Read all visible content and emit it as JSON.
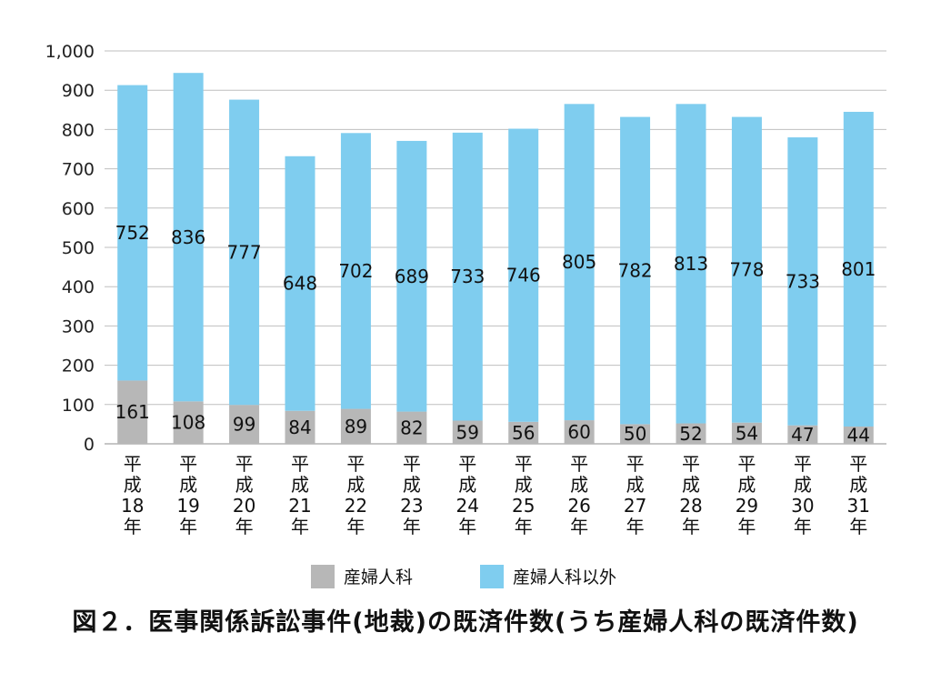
{
  "caption": "図２．医事関係訴訟事件(地裁)の既済件数(うち産婦人科の既済件数)",
  "colors": {
    "obgyn": "#b7b7b7",
    "other": "#7fcdef",
    "grid": "#bfbfbf",
    "axis": "#8c8c8c"
  },
  "chart_data": {
    "type": "bar",
    "stacked": true,
    "title": "図２．医事関係訴訟事件(地裁)の既済件数(うち産婦人科の既済件数)",
    "categories": [
      [
        "平",
        "成",
        "18",
        "年"
      ],
      [
        "平",
        "成",
        "19",
        "年"
      ],
      [
        "平",
        "成",
        "20",
        "年"
      ],
      [
        "平",
        "成",
        "21",
        "年"
      ],
      [
        "平",
        "成",
        "22",
        "年"
      ],
      [
        "平",
        "成",
        "23",
        "年"
      ],
      [
        "平",
        "成",
        "24",
        "年"
      ],
      [
        "平",
        "成",
        "25",
        "年"
      ],
      [
        "平",
        "成",
        "26",
        "年"
      ],
      [
        "平",
        "成",
        "27",
        "年"
      ],
      [
        "平",
        "成",
        "28",
        "年"
      ],
      [
        "平",
        "成",
        "29",
        "年"
      ],
      [
        "平",
        "成",
        "30",
        "年"
      ],
      [
        "平",
        "成",
        "31",
        "年"
      ]
    ],
    "series": [
      {
        "name": "産婦人科",
        "values": [
          161,
          108,
          99,
          84,
          89,
          82,
          59,
          56,
          60,
          50,
          52,
          54,
          47,
          44
        ]
      },
      {
        "name": "産婦人科以外",
        "values": [
          752,
          836,
          777,
          648,
          702,
          689,
          733,
          746,
          805,
          782,
          813,
          778,
          733,
          801
        ]
      }
    ],
    "ylim": [
      0,
      1000
    ],
    "yticks": [
      0,
      100,
      200,
      300,
      400,
      500,
      600,
      700,
      800,
      900,
      1000
    ],
    "ytick_labels": [
      "0",
      "100",
      "200",
      "300",
      "400",
      "500",
      "600",
      "700",
      "800",
      "900",
      "1,000"
    ],
    "grid": true,
    "legend_position": "bottom"
  }
}
